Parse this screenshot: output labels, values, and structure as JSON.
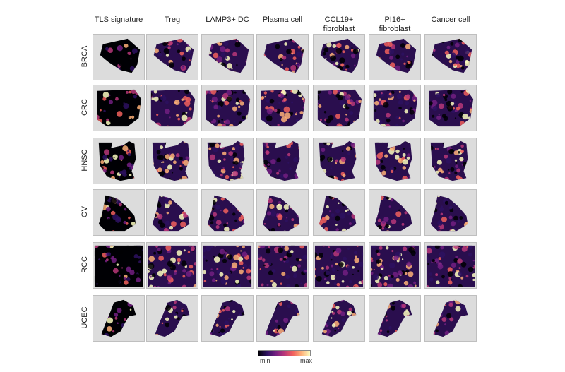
{
  "columns": [
    "TLS signature",
    "Treg",
    "LAMP3+ DC",
    "Plasma cell",
    "CCL19+\nfibroblast",
    "PI16+\nfibroblast",
    "Cancer cell"
  ],
  "rows": [
    "BRCA",
    "CRC",
    "HNSC",
    "OV",
    "RCC",
    "UCEC"
  ],
  "legend": {
    "min_label": "min",
    "max_label": "max"
  },
  "colormap": [
    "#000004",
    "#2d1160",
    "#721f81",
    "#b73779",
    "#f1605d",
    "#feb078",
    "#fcfdbf"
  ]
}
